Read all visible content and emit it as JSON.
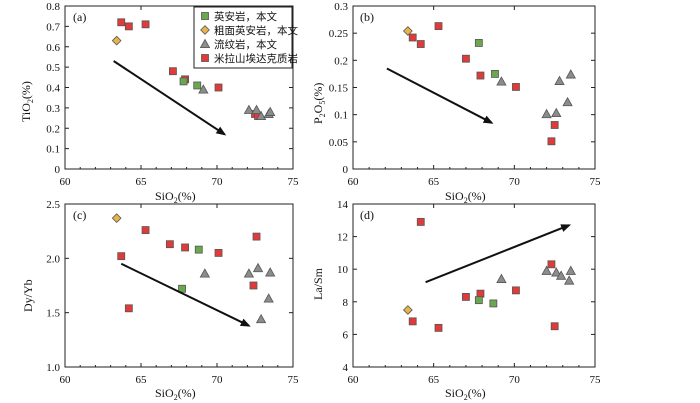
{
  "colors": {
    "andesite": "#6aa84f",
    "trachyandesite": "#e8b44a",
    "rhyolite": "#8c8c8c",
    "granite": "#e03a3a",
    "axis": "#222222"
  },
  "legend": [
    {
      "key": "andesite",
      "label": "英安岩，本文",
      "marker": "square"
    },
    {
      "key": "trachyandesite",
      "label": "粗面英安岩，本文",
      "marker": "diamond"
    },
    {
      "key": "rhyolite",
      "label": "流纹岩，本文",
      "marker": "triangle"
    },
    {
      "key": "granite",
      "label": "米拉山埃达克质岩",
      "marker": "square"
    }
  ],
  "chart_data": [
    {
      "type": "scatter",
      "panel": "(a)",
      "title": "",
      "xlabel": "SiO",
      "xlabel_sub": "2",
      "xlabel_suffix": "(%)",
      "ylabel": "TiO",
      "ylabel_sub": "2",
      "ylabel_suffix": "(%)",
      "xlim": [
        60,
        75
      ],
      "ylim": [
        0,
        0.8
      ],
      "xticks": [
        60,
        65,
        70,
        75
      ],
      "yticks": [
        0,
        0.1,
        0.2,
        0.3,
        0.4,
        0.5,
        0.6,
        0.7,
        0.8
      ],
      "xtick_labels": [
        "60",
        "65",
        "70",
        "75"
      ],
      "ytick_labels": [
        "0",
        "0.1",
        "0.2",
        "0.3",
        "0.4",
        "0.5",
        "0.6",
        "0.7",
        "0.8"
      ],
      "trend_arrow": {
        "from": [
          63.2,
          0.53
        ],
        "to": [
          70.5,
          0.17
        ],
        "meaning": "decreasing"
      },
      "series": [
        {
          "key": "granite",
          "name": "米拉山埃达克质岩",
          "points": [
            [
              63.7,
              0.72
            ],
            [
              64.2,
              0.7
            ],
            [
              65.3,
              0.71
            ],
            [
              67.1,
              0.48
            ],
            [
              67.9,
              0.44
            ],
            [
              70.1,
              0.4
            ],
            [
              72.5,
              0.27
            ],
            [
              72.7,
              0.26
            ]
          ]
        },
        {
          "key": "trachyandesite",
          "name": "粗面英安岩，本文",
          "points": [
            [
              63.4,
              0.63
            ]
          ]
        },
        {
          "key": "andesite",
          "name": "英安岩，本文",
          "points": [
            [
              67.8,
              0.43
            ],
            [
              68.7,
              0.41
            ]
          ]
        },
        {
          "key": "rhyolite",
          "name": "流纹岩，本文",
          "points": [
            [
              69.1,
              0.39
            ],
            [
              72.1,
              0.29
            ],
            [
              72.6,
              0.29
            ],
            [
              72.9,
              0.26
            ],
            [
              73.4,
              0.27
            ],
            [
              73.5,
              0.28
            ]
          ]
        }
      ]
    },
    {
      "type": "scatter",
      "panel": "(b)",
      "title": "",
      "xlabel": "SiO",
      "xlabel_sub": "2",
      "xlabel_suffix": "(%)",
      "ylabel": "P",
      "ylabel_sub": "2",
      "ylabel_mid": "O",
      "ylabel_sub2": "5",
      "ylabel_suffix": "(%)",
      "xlim": [
        60,
        75
      ],
      "ylim": [
        0,
        0.3
      ],
      "xticks": [
        60,
        65,
        70,
        75
      ],
      "yticks": [
        0,
        0.05,
        0.1,
        0.15,
        0.2,
        0.25,
        0.3
      ],
      "xtick_labels": [
        "60",
        "65",
        "70",
        "75"
      ],
      "ytick_labels": [
        "0",
        "0.05",
        "0.1",
        "0.15",
        "0.2",
        "0.25",
        "0.3"
      ],
      "trend_arrow": {
        "from": [
          62.1,
          0.185
        ],
        "to": [
          68.6,
          0.085
        ],
        "meaning": "decreasing"
      },
      "series": [
        {
          "key": "granite",
          "name": "米拉山埃达克质岩",
          "points": [
            [
              63.7,
              0.242
            ],
            [
              64.2,
              0.23
            ],
            [
              65.3,
              0.263
            ],
            [
              67.0,
              0.203
            ],
            [
              67.9,
              0.172
            ],
            [
              70.1,
              0.151
            ],
            [
              72.3,
              0.051
            ],
            [
              72.5,
              0.081
            ]
          ]
        },
        {
          "key": "trachyandesite",
          "name": "粗面英安岩，本文",
          "points": [
            [
              63.4,
              0.254
            ]
          ]
        },
        {
          "key": "andesite",
          "name": "英安岩，本文",
          "points": [
            [
              67.8,
              0.232
            ],
            [
              68.8,
              0.175
            ]
          ]
        },
        {
          "key": "rhyolite",
          "name": "流纹岩，本文",
          "points": [
            [
              69.2,
              0.161
            ],
            [
              72.0,
              0.101
            ],
            [
              72.6,
              0.103
            ],
            [
              72.8,
              0.162
            ],
            [
              73.3,
              0.123
            ],
            [
              73.5,
              0.174
            ]
          ]
        }
      ]
    },
    {
      "type": "scatter",
      "panel": "(c)",
      "title": "",
      "xlabel": "SiO",
      "xlabel_sub": "2",
      "xlabel_suffix": "(%)",
      "ylabel": "Dy/Yb",
      "xlim": [
        60,
        75
      ],
      "ylim": [
        1.0,
        2.5
      ],
      "xticks": [
        60,
        65,
        70,
        75
      ],
      "yticks": [
        1.0,
        1.5,
        2.0,
        2.5
      ],
      "xtick_labels": [
        "60",
        "65",
        "70",
        "75"
      ],
      "ytick_labels": [
        "1.0",
        "1.5",
        "2.0",
        "2.5"
      ],
      "trend_arrow": {
        "from": [
          63.7,
          1.95
        ],
        "to": [
          72.1,
          1.38
        ],
        "meaning": "decreasing"
      },
      "series": [
        {
          "key": "granite",
          "name": "米拉山埃达克质岩",
          "points": [
            [
              63.7,
              2.02
            ],
            [
              64.2,
              1.54
            ],
            [
              65.3,
              2.26
            ],
            [
              66.9,
              2.13
            ],
            [
              67.9,
              2.1
            ],
            [
              70.1,
              2.05
            ],
            [
              72.4,
              1.75
            ],
            [
              72.6,
              2.2
            ]
          ]
        },
        {
          "key": "trachyandesite",
          "name": "粗面英安岩，本文",
          "points": [
            [
              63.4,
              2.37
            ]
          ]
        },
        {
          "key": "andesite",
          "name": "英安岩，本文",
          "points": [
            [
              67.7,
              1.72
            ],
            [
              68.8,
              2.08
            ]
          ]
        },
        {
          "key": "rhyolite",
          "name": "流纹岩，本文",
          "points": [
            [
              69.2,
              1.86
            ],
            [
              72.1,
              1.86
            ],
            [
              72.7,
              1.91
            ],
            [
              72.9,
              1.44
            ],
            [
              73.4,
              1.63
            ],
            [
              73.5,
              1.87
            ]
          ]
        }
      ]
    },
    {
      "type": "scatter",
      "panel": "(d)",
      "title": "",
      "xlabel": "SiO",
      "xlabel_sub": "2",
      "xlabel_suffix": "(%)",
      "ylabel": "La/Sm",
      "xlim": [
        60,
        75
      ],
      "ylim": [
        4,
        14
      ],
      "xticks": [
        60,
        65,
        70,
        75
      ],
      "yticks": [
        4,
        6,
        8,
        10,
        12,
        14
      ],
      "xtick_labels": [
        "60",
        "65",
        "70",
        "75"
      ],
      "ytick_labels": [
        "4",
        "6",
        "8",
        "10",
        "12",
        "14"
      ],
      "trend_arrow": {
        "from": [
          64.5,
          9.2
        ],
        "to": [
          73.4,
          12.7
        ],
        "meaning": "increasing"
      },
      "series": [
        {
          "key": "granite",
          "name": "米拉山埃达克质岩",
          "points": [
            [
              63.7,
              6.8
            ],
            [
              64.2,
              12.9
            ],
            [
              65.3,
              6.4
            ],
            [
              67.0,
              8.3
            ],
            [
              67.9,
              8.5
            ],
            [
              70.1,
              8.7
            ],
            [
              72.3,
              10.3
            ],
            [
              72.5,
              6.5
            ]
          ]
        },
        {
          "key": "trachyandesite",
          "name": "粗面英安岩，本文",
          "points": [
            [
              63.4,
              7.5
            ]
          ]
        },
        {
          "key": "andesite",
          "name": "英安岩，本文",
          "points": [
            [
              67.8,
              8.1
            ],
            [
              68.7,
              7.9
            ]
          ]
        },
        {
          "key": "rhyolite",
          "name": "流纹岩，本文",
          "points": [
            [
              69.2,
              9.4
            ],
            [
              72.0,
              9.9
            ],
            [
              72.6,
              9.8
            ],
            [
              72.9,
              9.6
            ],
            [
              73.4,
              9.3
            ],
            [
              73.5,
              9.9
            ]
          ]
        }
      ]
    }
  ]
}
